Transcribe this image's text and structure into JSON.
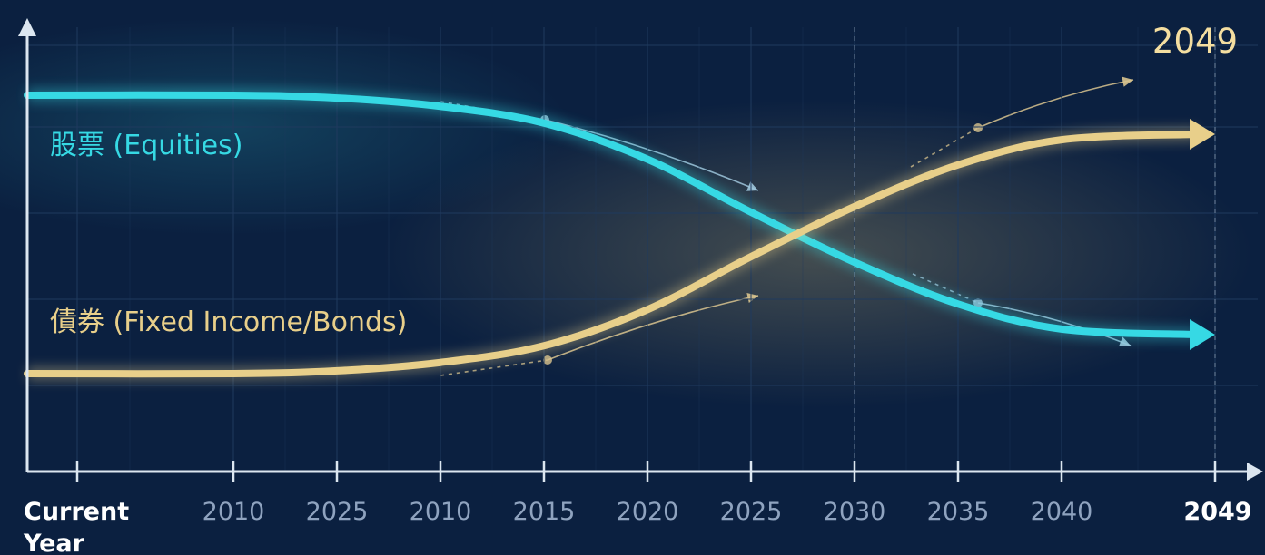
{
  "chart_data": {
    "type": "line",
    "title": "",
    "xlabel": "",
    "ylabel": "",
    "grid": true,
    "x_tick_labels": [
      "Current Year",
      "2010",
      "2025",
      "2010",
      "2015",
      "2020",
      "2025",
      "2030",
      "2035",
      "2040",
      "2049"
    ],
    "end_label": "2049",
    "series": [
      {
        "name": "股票 (Equities)",
        "color": "#36d9e4",
        "values": [
          100,
          100,
          99,
          96,
          90,
          77,
          58,
          40,
          25,
          16,
          14
        ]
      },
      {
        "name": "債券 (Fixed Income/Bonds)",
        "color": "#e8cf8a",
        "values": [
          0,
          0,
          1,
          4,
          10,
          23,
          42,
          60,
          75,
          84,
          86
        ]
      }
    ],
    "colors": {
      "background": "#0b2040",
      "axis": "#dce6f0",
      "tick_label": "#8fa3bf",
      "tick_label_highlight": "#ffffff",
      "end_label": "#f4dea0",
      "grid": "#1f3a5e"
    }
  }
}
